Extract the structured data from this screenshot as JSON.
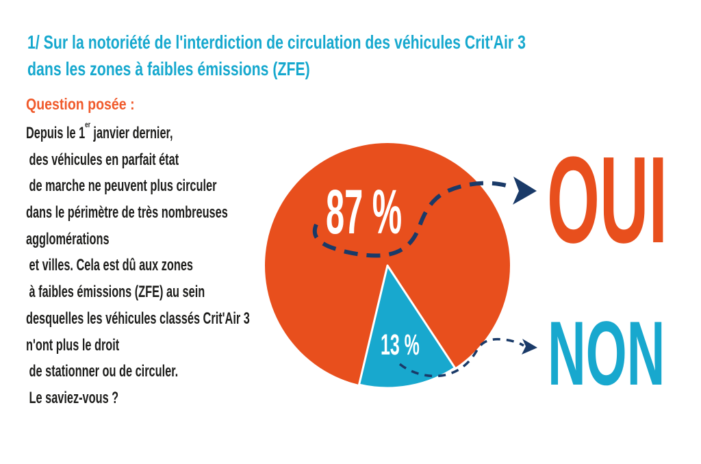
{
  "title": {
    "line1": "1/ Sur la notoriété de l'interdiction de circulation des véhicules Crit'Air 3",
    "line2": "dans les zones à faibles émissions (ZFE)"
  },
  "question": {
    "label": "Question posée :"
  },
  "body": {
    "line1_prefix": "Depuis le 1",
    "line1_sup": "er",
    "line1_suffix": " janvier dernier,",
    "lines": [
      " des véhicules en parfait état",
      " de marche ne peuvent plus circuler",
      "dans le périmètre de très nombreuses",
      "agglomérations",
      " et villes. Cela est dû aux zones",
      " à faibles émissions (ZFE) au sein",
      "desquelles les véhicules classés Crit'Air 3",
      "n'ont plus le droit",
      " de stationner ou de circuler.",
      " Le saviez-vous ?"
    ]
  },
  "chart_data": {
    "type": "pie",
    "segments": [
      {
        "label": "OUI",
        "value": 87,
        "display": "87 %",
        "color": "#e84f1d"
      },
      {
        "label": "NON",
        "value": 13,
        "display": "13 %",
        "color": "#18a8ce"
      }
    ],
    "legend_position": "right",
    "annotations": [
      "hand-drawn dashed navy swoosh looping under 87 % ending in an arrow pointing to OUI",
      "thin dashed navy s-curve from the 13 % slice ending in an arrow pointing to NON"
    ]
  },
  "colors": {
    "title_cyan": "#16a8ce",
    "question_orange": "#f05a2b",
    "pie_orange": "#e84f1d",
    "pie_cyan": "#18a8ce",
    "arrow_navy": "#1a3a68",
    "body_text": "#1d1d1b",
    "slice_label_white": "#ffffff"
  }
}
